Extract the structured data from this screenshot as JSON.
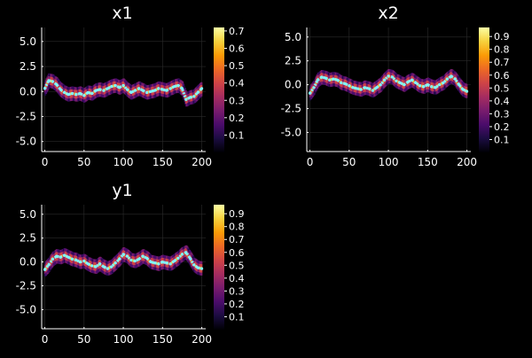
{
  "theme": {
    "background": "#000000",
    "text": "#ffffff",
    "grid": "#2b2b2b",
    "trace": "#7ff6ff",
    "colormap": [
      "#000004",
      "#1b0c41",
      "#4a0c6b",
      "#781c6d",
      "#a52c60",
      "#cf4446",
      "#ed6925",
      "#fb9b06",
      "#f7d13d",
      "#fcffa4"
    ]
  },
  "chart_data": [
    {
      "type": "heatmap",
      "title": "x1",
      "xlim": [
        -4,
        205
      ],
      "ylim": [
        -6,
        6.4
      ],
      "xticks": [
        0,
        50,
        100,
        150,
        200
      ],
      "yticks": [
        -5.0,
        -2.5,
        0.0,
        2.5,
        5.0
      ],
      "ytick_labels": [
        "-5.0",
        "-2.5",
        "0.0",
        "2.5",
        "5.0"
      ],
      "colorbar": {
        "range": [
          0,
          0.72
        ],
        "ticks": [
          0.1,
          0.2,
          0.3,
          0.4,
          0.5,
          0.6,
          0.7
        ],
        "labels": [
          "0.1",
          "0.2",
          "0.3",
          "0.4",
          "0.5",
          "0.6",
          "0.7"
        ]
      },
      "series": [
        {
          "x": [
            0,
            5,
            10,
            15,
            20,
            25,
            30,
            35,
            40,
            45,
            50,
            55,
            60,
            65,
            70,
            75,
            80,
            85,
            90,
            95,
            100,
            105,
            110,
            115,
            120,
            125,
            130,
            135,
            140,
            145,
            150,
            155,
            160,
            165,
            170,
            175,
            180,
            185,
            190,
            195,
            200
          ],
          "y": [
            0.3,
            1.1,
            1.0,
            0.7,
            0.2,
            -0.1,
            -0.3,
            -0.2,
            -0.3,
            -0.2,
            -0.4,
            -0.1,
            -0.2,
            0.1,
            0.2,
            0.1,
            0.3,
            0.5,
            0.6,
            0.4,
            0.6,
            0.2,
            -0.1,
            0.1,
            0.3,
            0.1,
            -0.1,
            0.0,
            0.1,
            0.3,
            0.2,
            0.1,
            0.3,
            0.5,
            0.6,
            0.3,
            -0.8,
            -0.6,
            -0.5,
            -0.1,
            0.3
          ]
        }
      ]
    },
    {
      "type": "heatmap",
      "title": "x2",
      "xlim": [
        -4,
        205
      ],
      "ylim": [
        -7,
        6
      ],
      "xticks": [
        0,
        50,
        100,
        150,
        200
      ],
      "yticks": [
        -5.0,
        -2.5,
        0.0,
        2.5,
        5.0
      ],
      "ytick_labels": [
        "-5.0",
        "-2.5",
        "0.0",
        "2.5",
        "5.0"
      ],
      "colorbar": {
        "range": [
          0,
          0.97
        ],
        "ticks": [
          0.1,
          0.2,
          0.3,
          0.4,
          0.5,
          0.6,
          0.7,
          0.8,
          0.9
        ],
        "labels": [
          "0.1",
          "0.2",
          "0.3",
          "0.4",
          "0.5",
          "0.6",
          "0.7",
          "0.8",
          "0.9"
        ]
      },
      "series": [
        {
          "x": [
            0,
            5,
            10,
            15,
            20,
            25,
            30,
            35,
            40,
            45,
            50,
            55,
            60,
            65,
            70,
            75,
            80,
            85,
            90,
            95,
            100,
            105,
            110,
            115,
            120,
            125,
            130,
            135,
            140,
            145,
            150,
            155,
            160,
            165,
            170,
            175,
            180,
            185,
            190,
            195,
            200
          ],
          "y": [
            -0.9,
            -0.3,
            0.5,
            0.8,
            0.7,
            0.5,
            0.6,
            0.5,
            0.2,
            0.1,
            -0.1,
            -0.3,
            -0.4,
            -0.5,
            -0.3,
            -0.4,
            -0.6,
            -0.3,
            0.0,
            0.5,
            0.9,
            0.8,
            0.4,
            0.2,
            0.0,
            0.3,
            0.5,
            0.2,
            -0.1,
            -0.2,
            0.0,
            -0.2,
            -0.3,
            0.0,
            0.2,
            0.6,
            0.9,
            0.6,
            0.0,
            -0.5,
            -0.7
          ]
        }
      ]
    },
    {
      "type": "heatmap",
      "title": "y1",
      "xlim": [
        -4,
        205
      ],
      "ylim": [
        -7,
        6
      ],
      "xticks": [
        0,
        50,
        100,
        150,
        200
      ],
      "yticks": [
        -5.0,
        -2.5,
        0.0,
        2.5,
        5.0
      ],
      "ytick_labels": [
        "-5.0",
        "-2.5",
        "0.0",
        "2.5",
        "5.0"
      ],
      "colorbar": {
        "range": [
          0,
          0.97
        ],
        "ticks": [
          0.1,
          0.2,
          0.3,
          0.4,
          0.5,
          0.6,
          0.7,
          0.8,
          0.9
        ],
        "labels": [
          "0.1",
          "0.2",
          "0.3",
          "0.4",
          "0.5",
          "0.6",
          "0.7",
          "0.8",
          "0.9"
        ]
      },
      "series": [
        {
          "x": [
            0,
            5,
            10,
            15,
            20,
            25,
            30,
            35,
            40,
            45,
            50,
            55,
            60,
            65,
            70,
            75,
            80,
            85,
            90,
            95,
            100,
            105,
            110,
            115,
            120,
            125,
            130,
            135,
            140,
            145,
            150,
            155,
            160,
            165,
            170,
            175,
            180,
            185,
            190,
            195,
            200
          ],
          "y": [
            -0.8,
            -0.3,
            0.3,
            0.6,
            0.5,
            0.7,
            0.5,
            0.3,
            0.2,
            0.0,
            0.1,
            -0.2,
            -0.4,
            -0.5,
            -0.2,
            -0.5,
            -0.7,
            -0.5,
            -0.1,
            0.3,
            0.8,
            0.6,
            0.2,
            0.1,
            0.3,
            0.6,
            0.4,
            0.0,
            -0.1,
            -0.2,
            0.0,
            -0.1,
            -0.2,
            0.1,
            0.4,
            0.8,
            1.0,
            0.4,
            -0.3,
            -0.6,
            -0.7
          ]
        }
      ]
    }
  ]
}
